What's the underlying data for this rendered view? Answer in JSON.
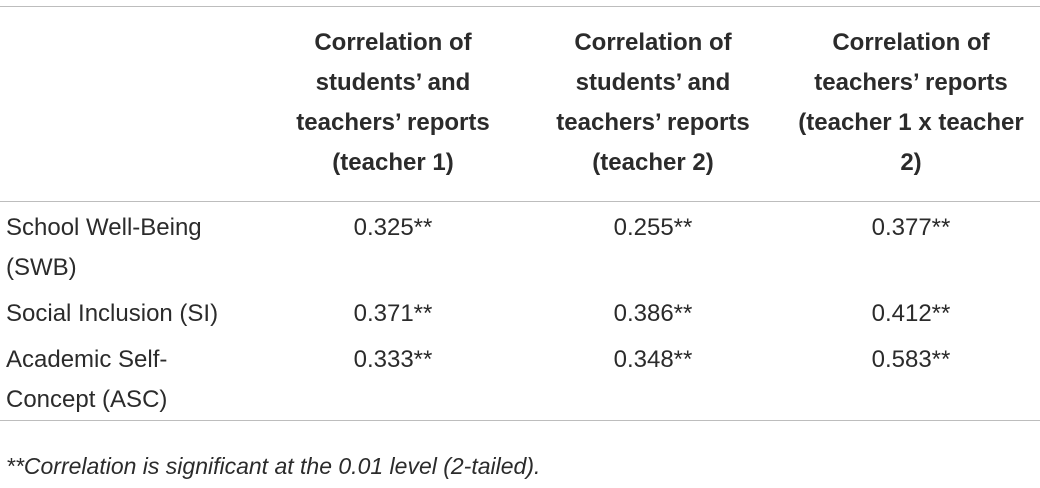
{
  "table": {
    "header": [
      "",
      "Correlation of students’ and teachers’ reports (teacher 1)",
      "Correlation of students’ and teachers’ reports (teacher 2)",
      "Correlation of teachers’ reports (teacher 1 x teacher 2)"
    ],
    "rows": [
      [
        "School Well-Being (SWB)",
        "0.325**",
        "0.255**",
        "0.377**"
      ],
      [
        "Social Inclusion (SI)",
        "0.371**",
        "0.386**",
        "0.412**"
      ],
      [
        "Academic Self-Concept (ASC)",
        "0.333**",
        "0.348**",
        "0.583**"
      ]
    ],
    "footnote": "**Correlation is significant at the 0.01 level (2-tailed)."
  }
}
